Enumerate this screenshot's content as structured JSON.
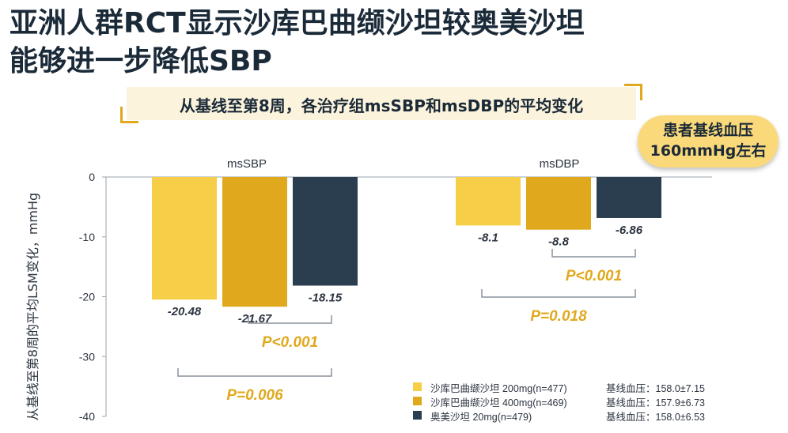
{
  "page": {
    "title_line1": "亚洲人群RCT显示沙库巴曲缬沙坦较奥美沙坦",
    "title_line2": "能够进一步降低SBP",
    "subtitle": "从基线至第8周，各治疗组msSBP和msDBP的平均变化",
    "badge_line1": "患者基线血压",
    "badge_line2": "160mmHg左右"
  },
  "colors": {
    "sac200": "#f7ce47",
    "sac400": "#e0a91d",
    "olm20": "#2b3e4f",
    "accent": "#e0a91d"
  },
  "chart_data": {
    "type": "bar",
    "ylabel": "从基线至第8周的平均LSM变化，mmHg",
    "ylim": [
      -40,
      0
    ],
    "yticks": [
      0,
      -10,
      -20,
      -30,
      -40
    ],
    "ytick_labels": [
      "0",
      "-10",
      "-20",
      "-30",
      "-40"
    ],
    "categories": [
      "msSBP",
      "msDBP"
    ],
    "series": [
      {
        "name": "沙库巴曲缬沙坦 200mg(n=477)",
        "baseline": "基线血压：158.0±7.15",
        "values": [
          -20.48,
          -8.1
        ],
        "labels": [
          "-20.48",
          "-8.1"
        ],
        "color": "#f7ce47"
      },
      {
        "name": "沙库巴曲缬沙坦 400mg(n=469)",
        "baseline": "基线血压：157.9±6.73",
        "values": [
          -21.67,
          -8.8
        ],
        "labels": [
          "-21.67",
          "-8.8"
        ],
        "color": "#e0a91d"
      },
      {
        "name": "奥美沙坦 20mg(n=479)",
        "baseline": "基线血压：158.0±6.53",
        "values": [
          -18.15,
          -6.86
        ],
        "labels": [
          "-18.15",
          "-6.86"
        ],
        "color": "#2b3e4f"
      }
    ],
    "comparisons": [
      {
        "category": "msSBP",
        "from": 1,
        "to": 2,
        "text": "P<0.001"
      },
      {
        "category": "msSBP",
        "from": 0,
        "to": 2,
        "text": "P=0.006"
      },
      {
        "category": "msDBP",
        "from": 1,
        "to": 2,
        "text": "P<0.001"
      },
      {
        "category": "msDBP",
        "from": 0,
        "to": 2,
        "text": "P=0.018"
      }
    ]
  }
}
